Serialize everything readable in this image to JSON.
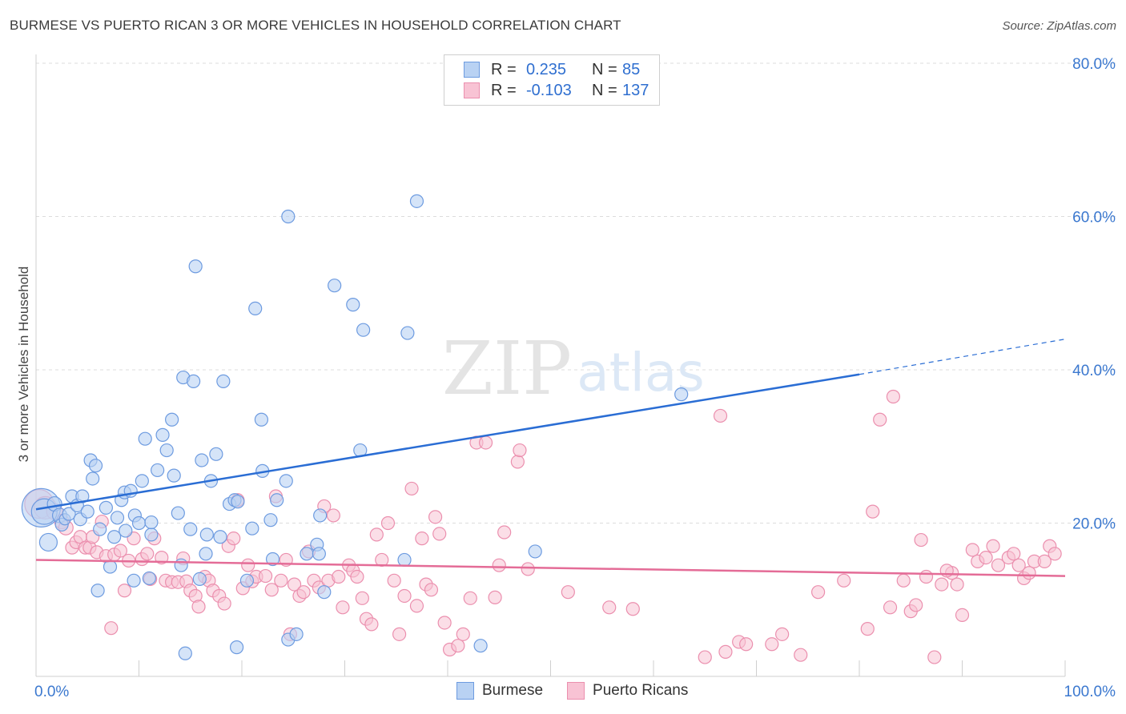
{
  "title": "BURMESE VS PUERTO RICAN 3 OR MORE VEHICLES IN HOUSEHOLD CORRELATION CHART",
  "source": "Source: ZipAtlas.com",
  "colors": {
    "burmese_fill": "#b9d2f3",
    "burmese_stroke": "#6d9be0",
    "burmese_line": "#2a6dd4",
    "pr_fill": "#f8c3d4",
    "pr_stroke": "#eb8fae",
    "pr_line": "#e46c97",
    "grid": "#dcdcdc",
    "axis_text": "#3b78cf"
  },
  "legend": {
    "rows": [
      {
        "r_label": "R =",
        "r_value": "0.235",
        "n_label": "N =",
        "n_value": "85"
      },
      {
        "r_label": "R =",
        "r_value": "-0.103",
        "n_label": "N =",
        "n_value": "137"
      }
    ],
    "bottom": [
      "Burmese",
      "Puerto Ricans"
    ]
  },
  "watermark": {
    "zip": "ZIP",
    "atlas": "atlas"
  },
  "chart_data": {
    "type": "scatter",
    "title": "BURMESE VS PUERTO RICAN 3 OR MORE VEHICLES IN HOUSEHOLD CORRELATION CHART",
    "xlabel": "",
    "ylabel": "3 or more Vehicles in Household",
    "xlim": [
      0,
      100
    ],
    "ylim": [
      0,
      80
    ],
    "x_tick_labels": [
      "0.0%",
      "100.0%"
    ],
    "y_ticks": [
      20,
      40,
      60,
      80
    ],
    "y_tick_labels": [
      "20.0%",
      "40.0%",
      "60.0%",
      "80.0%"
    ],
    "series": [
      {
        "name": "Burmese",
        "R": 0.235,
        "N": 85,
        "trend": {
          "x0": 0,
          "y0": 21.8,
          "x1": 80,
          "y1": 39.4,
          "dashed_to": 100,
          "dashed_y": 44.0
        },
        "points": [
          [
            0.5,
            22,
            24
          ],
          [
            0.8,
            21.5,
            16
          ],
          [
            1.2,
            17.5,
            11
          ],
          [
            1.8,
            22.5,
            9
          ],
          [
            2.3,
            21,
            9
          ],
          [
            2.5,
            19.8,
            8
          ],
          [
            2.8,
            20.5,
            7
          ],
          [
            3.2,
            21.2,
            8
          ],
          [
            3.5,
            23.5,
            8
          ],
          [
            4.0,
            22.3,
            8
          ],
          [
            4.3,
            20.5,
            8
          ],
          [
            4.5,
            23.5,
            8
          ],
          [
            5.0,
            21.5,
            8
          ],
          [
            5.3,
            28.2,
            8
          ],
          [
            5.5,
            25.8,
            8
          ],
          [
            5.8,
            27.5,
            8
          ],
          [
            6.2,
            19.2,
            8
          ],
          [
            6.8,
            22,
            8
          ],
          [
            7.2,
            14.3,
            8
          ],
          [
            7.6,
            18.2,
            8
          ],
          [
            7.9,
            20.7,
            8
          ],
          [
            8.3,
            23,
            8
          ],
          [
            8.6,
            24,
            8
          ],
          [
            8.7,
            19,
            8
          ],
          [
            9.2,
            24.2,
            8
          ],
          [
            9.6,
            21,
            8
          ],
          [
            10.0,
            20.0,
            8
          ],
          [
            10.3,
            25.5,
            8
          ],
          [
            10.6,
            31.0,
            8
          ],
          [
            11.2,
            18.5,
            8
          ],
          [
            11.2,
            20.1,
            8
          ],
          [
            11.8,
            26.9,
            8
          ],
          [
            12.3,
            31.5,
            8
          ],
          [
            12.7,
            29.5,
            8
          ],
          [
            13.2,
            33.5,
            8
          ],
          [
            13.4,
            26.2,
            8
          ],
          [
            13.8,
            21.3,
            8
          ],
          [
            14.1,
            14.5,
            8
          ],
          [
            14.3,
            39.0,
            8
          ],
          [
            15.0,
            19.2,
            8
          ],
          [
            15.3,
            38.5,
            8
          ],
          [
            15.5,
            53.5,
            8
          ],
          [
            15.9,
            12.7,
            8
          ],
          [
            16.1,
            28.2,
            8
          ],
          [
            16.6,
            18.5,
            8
          ],
          [
            17.0,
            25.5,
            8
          ],
          [
            17.5,
            29.0,
            8
          ],
          [
            17.9,
            18.2,
            8
          ],
          [
            18.2,
            38.5,
            8
          ],
          [
            18.8,
            22.5,
            8
          ],
          [
            19.3,
            23,
            8
          ],
          [
            19.5,
            3.8,
            8
          ],
          [
            19.6,
            22.8,
            8
          ],
          [
            21.0,
            19.3,
            8
          ],
          [
            21.3,
            48.0,
            8
          ],
          [
            21.9,
            33.5,
            8
          ],
          [
            22.0,
            26.8,
            8
          ],
          [
            22.8,
            20.4,
            8
          ],
          [
            23.0,
            15.3,
            8
          ],
          [
            23.4,
            23.0,
            8
          ],
          [
            24.3,
            25.5,
            8
          ],
          [
            24.5,
            60.0,
            8
          ],
          [
            24.5,
            4.8,
            8
          ],
          [
            25.3,
            5.5,
            8
          ],
          [
            26.3,
            16.0,
            8
          ],
          [
            27.3,
            17.2,
            8
          ],
          [
            27.5,
            16.0,
            8
          ],
          [
            27.6,
            21.0,
            8
          ],
          [
            28.0,
            11.0,
            8
          ],
          [
            29.0,
            51.0,
            8
          ],
          [
            30.8,
            48.5,
            8
          ],
          [
            31.5,
            29.5,
            8
          ],
          [
            31.8,
            45.2,
            8
          ],
          [
            35.8,
            15.2,
            8
          ],
          [
            36.1,
            44.8,
            8
          ],
          [
            37.0,
            62.0,
            8
          ],
          [
            43.2,
            4.0,
            8
          ],
          [
            48.5,
            16.3,
            8
          ],
          [
            62.7,
            36.8,
            8
          ],
          [
            14.5,
            3.0,
            8
          ],
          [
            16.5,
            16.0,
            8
          ],
          [
            20.5,
            12.5,
            8
          ],
          [
            9.5,
            12.5,
            8
          ],
          [
            6.0,
            11.2,
            8
          ],
          [
            11.0,
            12.8,
            8
          ]
        ]
      },
      {
        "name": "Puerto Ricans",
        "R": -0.103,
        "N": 137,
        "trend": {
          "x0": 0,
          "y0": 15.2,
          "x1": 100,
          "y1": 13.1
        },
        "points": [
          [
            0.3,
            22.5,
            18
          ],
          [
            0.9,
            22,
            14
          ],
          [
            1.8,
            21.5,
            10
          ],
          [
            2.5,
            20.2,
            9
          ],
          [
            2.9,
            19.4,
            9
          ],
          [
            3.5,
            16.8,
            8
          ],
          [
            3.9,
            17.5,
            8
          ],
          [
            4.3,
            18.2,
            8
          ],
          [
            4.8,
            16.8,
            8
          ],
          [
            5.2,
            16.8,
            8
          ],
          [
            5.5,
            18.2,
            8
          ],
          [
            5.9,
            16.2,
            8
          ],
          [
            6.4,
            20.2,
            8
          ],
          [
            6.8,
            15.7,
            8
          ],
          [
            7.3,
            6.3,
            8
          ],
          [
            7.6,
            15.9,
            8
          ],
          [
            8.2,
            16.4,
            8
          ],
          [
            8.6,
            11.2,
            8
          ],
          [
            9.0,
            15.1,
            8
          ],
          [
            9.5,
            18.0,
            8
          ],
          [
            10.3,
            15.3,
            8
          ],
          [
            10.8,
            16.0,
            8
          ],
          [
            11.1,
            12.7,
            8
          ],
          [
            11.5,
            18.0,
            8
          ],
          [
            12.2,
            15.5,
            8
          ],
          [
            12.6,
            12.5,
            8
          ],
          [
            13.2,
            12.3,
            8
          ],
          [
            13.8,
            12.3,
            8
          ],
          [
            14.3,
            15.4,
            8
          ],
          [
            14.6,
            12.4,
            8
          ],
          [
            15.0,
            11.2,
            8
          ],
          [
            15.5,
            10.5,
            8
          ],
          [
            15.8,
            9.1,
            8
          ],
          [
            16.4,
            13.0,
            8
          ],
          [
            16.8,
            12.5,
            8
          ],
          [
            17.2,
            11.2,
            8
          ],
          [
            17.8,
            10.5,
            8
          ],
          [
            18.3,
            9.5,
            8
          ],
          [
            18.7,
            17.0,
            8
          ],
          [
            19.2,
            18.0,
            8
          ],
          [
            19.6,
            23.0,
            8
          ],
          [
            20.1,
            11.5,
            8
          ],
          [
            20.6,
            14.5,
            8
          ],
          [
            21.0,
            12.4,
            8
          ],
          [
            21.4,
            13.0,
            8
          ],
          [
            22.3,
            13.1,
            8
          ],
          [
            22.9,
            11.3,
            8
          ],
          [
            23.3,
            23.5,
            8
          ],
          [
            23.8,
            12.5,
            8
          ],
          [
            24.3,
            15.2,
            8
          ],
          [
            24.7,
            5.5,
            8
          ],
          [
            25.1,
            12.0,
            8
          ],
          [
            25.6,
            10.5,
            8
          ],
          [
            26.0,
            11.0,
            8
          ],
          [
            26.5,
            16.3,
            8
          ],
          [
            27.0,
            12.5,
            8
          ],
          [
            27.5,
            11.6,
            8
          ],
          [
            28.0,
            22.2,
            8
          ],
          [
            28.4,
            12.5,
            8
          ],
          [
            28.9,
            21.0,
            8
          ],
          [
            29.4,
            13.0,
            8
          ],
          [
            29.8,
            9.0,
            8
          ],
          [
            30.4,
            14.5,
            8
          ],
          [
            30.8,
            13.8,
            8
          ],
          [
            31.2,
            13.0,
            8
          ],
          [
            31.7,
            10.2,
            8
          ],
          [
            32.1,
            7.5,
            8
          ],
          [
            32.6,
            6.8,
            8
          ],
          [
            33.1,
            18.5,
            8
          ],
          [
            33.6,
            15.2,
            8
          ],
          [
            34.2,
            20.0,
            8
          ],
          [
            34.8,
            12.5,
            8
          ],
          [
            35.3,
            5.5,
            8
          ],
          [
            35.8,
            10.5,
            8
          ],
          [
            36.5,
            24.5,
            8
          ],
          [
            37.0,
            9.2,
            8
          ],
          [
            37.5,
            18.0,
            8
          ],
          [
            37.9,
            12.0,
            8
          ],
          [
            38.4,
            11.3,
            8
          ],
          [
            38.8,
            20.8,
            8
          ],
          [
            39.2,
            18.6,
            8
          ],
          [
            39.7,
            7.0,
            8
          ],
          [
            40.2,
            3.5,
            8
          ],
          [
            41.0,
            4.0,
            8
          ],
          [
            41.5,
            5.5,
            8
          ],
          [
            42.2,
            10.2,
            8
          ],
          [
            42.8,
            30.5,
            8
          ],
          [
            43.7,
            30.5,
            8
          ],
          [
            44.6,
            10.3,
            8
          ],
          [
            45.0,
            14.5,
            8
          ],
          [
            45.5,
            18.8,
            8
          ],
          [
            46.8,
            28.0,
            8
          ],
          [
            47.0,
            29.5,
            8
          ],
          [
            47.8,
            14.0,
            8
          ],
          [
            51.7,
            11.0,
            8
          ],
          [
            55.7,
            9.0,
            8
          ],
          [
            58.0,
            8.8,
            8
          ],
          [
            65.0,
            2.5,
            8
          ],
          [
            66.5,
            34.0,
            8
          ],
          [
            67.0,
            3.2,
            8
          ],
          [
            68.3,
            4.5,
            8
          ],
          [
            69.0,
            4.2,
            8
          ],
          [
            71.5,
            4.2,
            8
          ],
          [
            72.5,
            5.5,
            8
          ],
          [
            74.3,
            2.8,
            8
          ],
          [
            76.0,
            11.0,
            8
          ],
          [
            78.5,
            12.5,
            8
          ],
          [
            80.8,
            6.2,
            8
          ],
          [
            81.3,
            21.5,
            8
          ],
          [
            82.0,
            33.5,
            8
          ],
          [
            83.0,
            9.0,
            8
          ],
          [
            83.3,
            36.5,
            8
          ],
          [
            85.0,
            8.5,
            8
          ],
          [
            85.5,
            9.3,
            8
          ],
          [
            86.0,
            17.8,
            8
          ],
          [
            86.5,
            13.0,
            8
          ],
          [
            87.3,
            2.5,
            8
          ],
          [
            88.0,
            12.0,
            8
          ],
          [
            89.0,
            13.5,
            8
          ],
          [
            90.0,
            8.0,
            8
          ],
          [
            91.0,
            16.5,
            8
          ],
          [
            91.5,
            15.0,
            8
          ],
          [
            92.3,
            15.5,
            8
          ],
          [
            93.0,
            17.0,
            8
          ],
          [
            93.5,
            14.5,
            8
          ],
          [
            94.5,
            15.5,
            8
          ],
          [
            95.0,
            16.0,
            8
          ],
          [
            95.5,
            14.5,
            8
          ],
          [
            96.0,
            12.8,
            8
          ],
          [
            96.5,
            13.5,
            8
          ],
          [
            97.0,
            15.0,
            8
          ],
          [
            98.0,
            15.0,
            8
          ],
          [
            98.5,
            17.0,
            8
          ],
          [
            99.0,
            16.0,
            8
          ],
          [
            88.5,
            13.8,
            8
          ],
          [
            84.3,
            12.5,
            8
          ],
          [
            89.5,
            12.0,
            8
          ]
        ]
      }
    ]
  }
}
